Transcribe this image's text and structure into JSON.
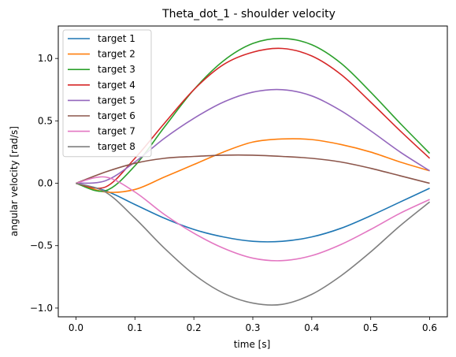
{
  "chart_data": {
    "type": "line",
    "title": "Theta_dot_1 - shoulder velocity",
    "xlabel": "time [s]",
    "ylabel": "angular velocity [rad/s]",
    "xlim": [
      -0.03,
      0.63
    ],
    "ylim": [
      -1.07,
      1.26
    ],
    "xticks": [
      0.0,
      0.1,
      0.2,
      0.3,
      0.4,
      0.5,
      0.6
    ],
    "xtick_labels": [
      "0.0",
      "0.1",
      "0.2",
      "0.3",
      "0.4",
      "0.5",
      "0.6"
    ],
    "yticks": [
      -1.0,
      -0.5,
      0.0,
      0.5,
      1.0
    ],
    "ytick_labels": [
      "−1.0",
      "−0.5",
      "0.0",
      "0.5",
      "1.0"
    ],
    "grid": false,
    "legend": "top-left",
    "x": [
      0.0,
      0.05,
      0.1,
      0.15,
      0.2,
      0.25,
      0.3,
      0.35,
      0.4,
      0.45,
      0.5,
      0.55,
      0.6
    ],
    "series": [
      {
        "name": "target 1",
        "color": "#1f77b4",
        "values": [
          0.0,
          -0.06,
          -0.17,
          -0.28,
          -0.37,
          -0.43,
          -0.465,
          -0.465,
          -0.43,
          -0.36,
          -0.26,
          -0.15,
          -0.04
        ]
      },
      {
        "name": "target 2",
        "color": "#ff7f0e",
        "values": [
          0.0,
          -0.07,
          -0.05,
          0.05,
          0.15,
          0.25,
          0.33,
          0.355,
          0.35,
          0.31,
          0.25,
          0.17,
          0.1
        ]
      },
      {
        "name": "target 3",
        "color": "#2ca02c",
        "values": [
          0.0,
          -0.06,
          0.14,
          0.45,
          0.75,
          0.98,
          1.12,
          1.16,
          1.11,
          0.96,
          0.73,
          0.48,
          0.24
        ]
      },
      {
        "name": "target 4",
        "color": "#d62728",
        "values": [
          0.0,
          -0.03,
          0.2,
          0.48,
          0.75,
          0.95,
          1.05,
          1.08,
          1.02,
          0.87,
          0.65,
          0.42,
          0.2
        ]
      },
      {
        "name": "target 5",
        "color": "#9467bd",
        "values": [
          0.0,
          0.02,
          0.17,
          0.36,
          0.52,
          0.65,
          0.73,
          0.75,
          0.7,
          0.58,
          0.42,
          0.25,
          0.1
        ]
      },
      {
        "name": "target 6",
        "color": "#8c564b",
        "values": [
          0.0,
          0.09,
          0.16,
          0.2,
          0.215,
          0.225,
          0.225,
          0.215,
          0.2,
          0.17,
          0.12,
          0.06,
          0.0
        ]
      },
      {
        "name": "target 7",
        "color": "#e377c2",
        "values": [
          0.0,
          0.05,
          -0.07,
          -0.25,
          -0.4,
          -0.52,
          -0.6,
          -0.62,
          -0.58,
          -0.49,
          -0.37,
          -0.24,
          -0.13
        ]
      },
      {
        "name": "target 8",
        "color": "#7f7f7f",
        "values": [
          0.0,
          -0.07,
          -0.28,
          -0.52,
          -0.73,
          -0.88,
          -0.96,
          -0.97,
          -0.89,
          -0.74,
          -0.55,
          -0.34,
          -0.15
        ]
      }
    ]
  }
}
